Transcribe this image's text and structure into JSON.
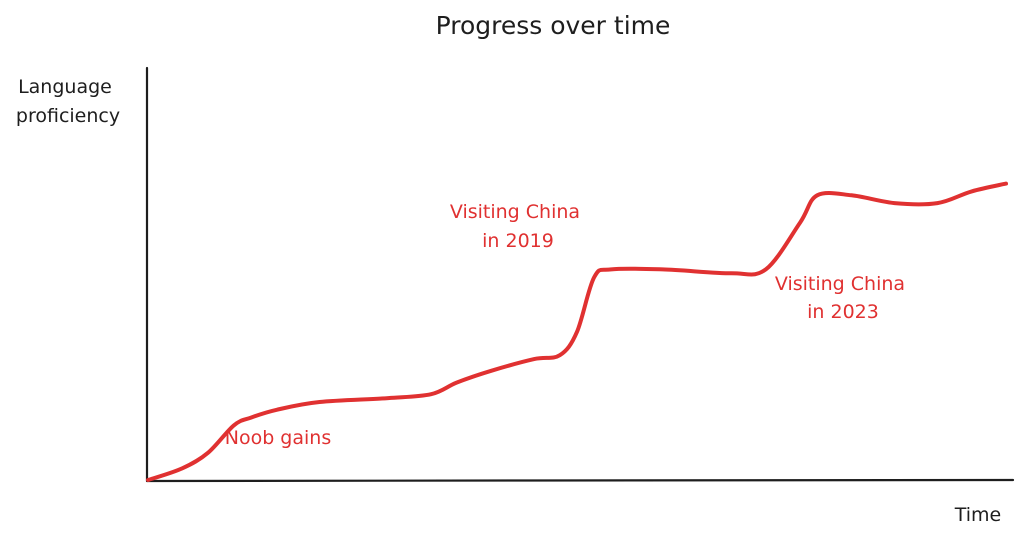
{
  "chart_data": {
    "type": "line",
    "title": "Progress over time",
    "xlabel": "Time",
    "ylabel_lines": [
      "Language",
      "proficiency"
    ],
    "x_ticks": [],
    "y_ticks": [],
    "grid": false,
    "legend": false,
    "series": [
      {
        "color": "#e03131",
        "points": [
          [
            0,
            0
          ],
          [
            4,
            3
          ],
          [
            7,
            7
          ],
          [
            10,
            14
          ],
          [
            12,
            16
          ],
          [
            15,
            18
          ],
          [
            20,
            20
          ],
          [
            28,
            21
          ],
          [
            33,
            22
          ],
          [
            36,
            25
          ],
          [
            40,
            28
          ],
          [
            45,
            31
          ],
          [
            48,
            32
          ],
          [
            50,
            38
          ],
          [
            52,
            52
          ],
          [
            54,
            54
          ],
          [
            60,
            54
          ],
          [
            68,
            53
          ],
          [
            72,
            54
          ],
          [
            76,
            66
          ],
          [
            78,
            73
          ],
          [
            82,
            73
          ],
          [
            87,
            71
          ],
          [
            92,
            71
          ],
          [
            96,
            74
          ],
          [
            100,
            76
          ]
        ]
      }
    ],
    "annotations": [
      {
        "lines": [
          "Noob gains"
        ],
        "color": "#e03131"
      },
      {
        "lines": [
          "Visiting China",
          "in 2019"
        ],
        "color": "#e03131"
      },
      {
        "lines": [
          "Visiting China",
          "in 2023"
        ],
        "color": "#e03131"
      }
    ]
  }
}
